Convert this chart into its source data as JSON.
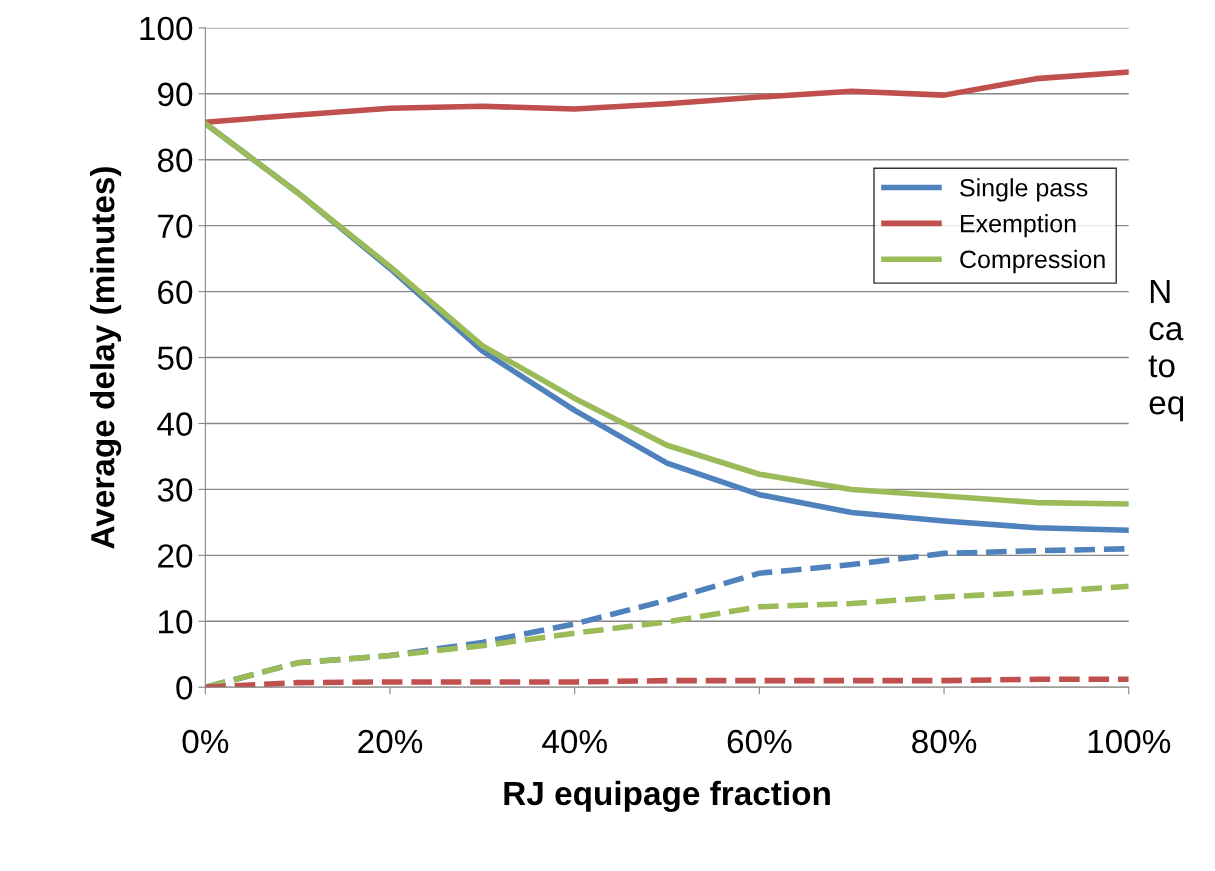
{
  "chart_data": {
    "type": "line",
    "xlabel": "RJ equipage fraction",
    "ylabel": "Average delay (minutes)",
    "x": [
      0,
      10,
      20,
      30,
      40,
      50,
      60,
      70,
      80,
      90,
      100
    ],
    "xlim": [
      0,
      100
    ],
    "xticks": [
      {
        "value": 0,
        "label": "0%"
      },
      {
        "value": 20,
        "label": "20%"
      },
      {
        "value": 40,
        "label": "40%"
      },
      {
        "value": 60,
        "label": "60%"
      },
      {
        "value": 80,
        "label": "80%"
      },
      {
        "value": 100,
        "label": "100%"
      }
    ],
    "ylim": [
      0,
      100
    ],
    "yticks": [
      0,
      10,
      20,
      30,
      40,
      50,
      60,
      70,
      80,
      90,
      100
    ],
    "grid": "y",
    "legend": "right",
    "series": [
      {
        "name": "Single pass",
        "color": "#4f81bd",
        "line_style": "solid",
        "values": [
          85.5,
          75,
          63.5,
          51,
          42,
          34,
          29.2,
          26.5,
          25.2,
          24.2,
          23.8
        ]
      },
      {
        "name": "Exemption",
        "color": "#c0504d",
        "line_style": "solid",
        "values": [
          85.7,
          86.8,
          87.8,
          88.1,
          87.7,
          88.5,
          89.5,
          90.4,
          89.8,
          92.3,
          93.3
        ]
      },
      {
        "name": "Compression",
        "color": "#9bbb59",
        "line_style": "solid",
        "values": [
          85.5,
          75,
          63.8,
          51.8,
          43.8,
          36.7,
          32.3,
          30,
          29,
          28,
          27.8
        ]
      },
      {
        "color": "#4f81bd",
        "line_style": "dashed",
        "values": [
          0,
          3.7,
          4.8,
          6.8,
          9.6,
          13.2,
          17.3,
          18.6,
          20.3,
          20.7,
          21
        ]
      },
      {
        "color": "#9bbb59",
        "line_style": "dashed",
        "values": [
          0,
          3.7,
          4.8,
          6.3,
          8.2,
          9.9,
          12.2,
          12.7,
          13.7,
          14.4,
          15.3
        ]
      },
      {
        "color": "#c0504d",
        "line_style": "dashed",
        "values": [
          0,
          0.7,
          0.8,
          0.8,
          0.8,
          1.0,
          1.0,
          1.0,
          1.0,
          1.2,
          1.2
        ]
      }
    ],
    "annotations": [
      "N\nca\nto\neq"
    ]
  }
}
